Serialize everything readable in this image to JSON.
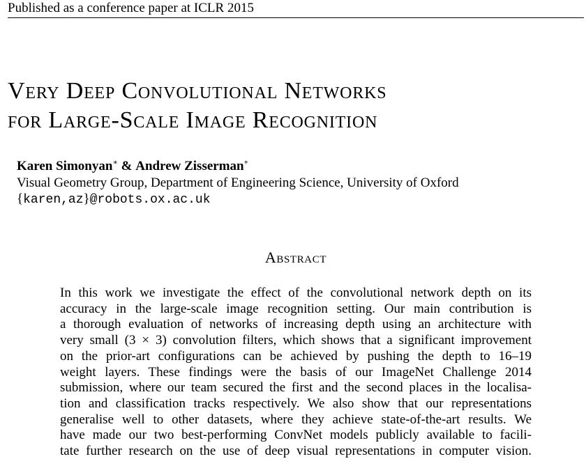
{
  "header": {
    "running_title": "Published as a conference paper at ICLR 2015"
  },
  "paper": {
    "title_lines": [
      "Very Deep Convolutional Networks",
      "for Large-Scale Image Recognition"
    ],
    "authors": {
      "author1": "Karen Simonyan",
      "author1_mark": "∗",
      "separator": "&",
      "author2": "Andrew Zisserman",
      "author2_mark": "+"
    },
    "affiliation": "Visual Geometry Group, Department of Engineering Science, University of Oxford",
    "email": {
      "open_brace": "{",
      "users": "karen,az",
      "close_brace": "}",
      "domain": "@robots.ox.ac.uk"
    }
  },
  "abstract": {
    "heading": "Abstract",
    "lines": [
      "In this work we investigate the effect of the convolutional network depth on its",
      "accuracy in the large-scale image recognition setting. Our main contribution is",
      "a thorough evaluation of networks of increasing depth using an architecture with",
      "very small (3 × 3) convolution filters, which shows that a significant improvement",
      "on the prior-art configurations can be achieved by pushing the depth to 16–19",
      "weight layers. These findings were the basis of our ImageNet Challenge 2014",
      "submission, where our team secured the first and the second places in the localisa-",
      "tion and classification tracks respectively. We also show that our representations",
      "generalise well to other datasets, where they achieve state-of-the-art results. We",
      "have made our two best-performing ConvNet models publicly available to facili-",
      "tate further research on the use of deep visual representations in computer vision."
    ]
  }
}
